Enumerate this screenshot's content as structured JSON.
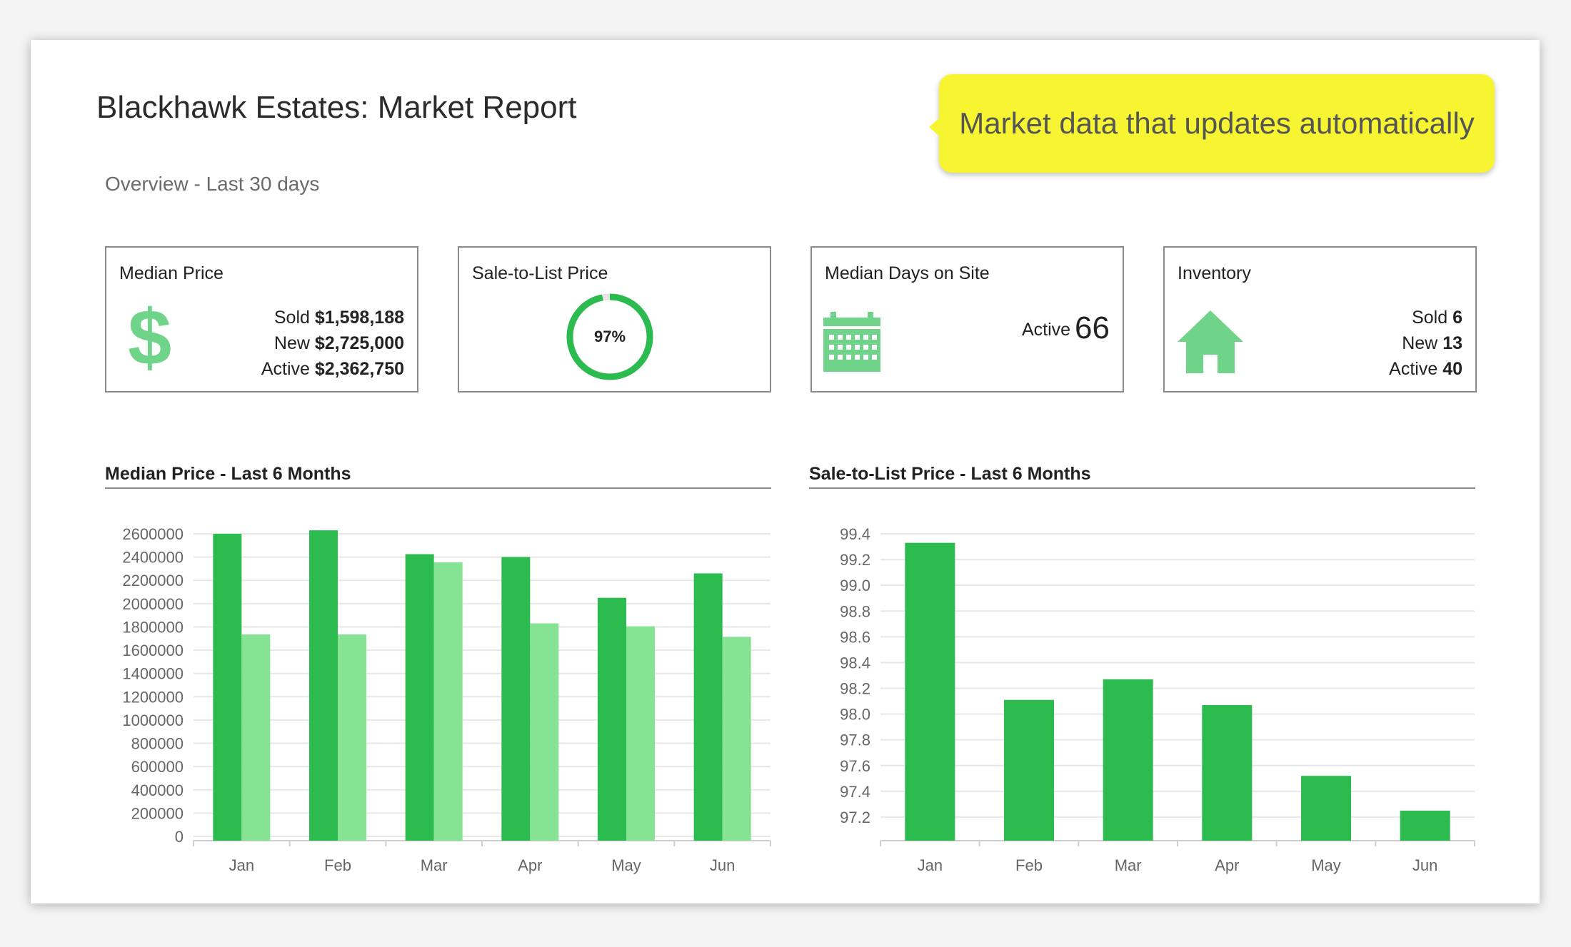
{
  "header": {
    "title": "Blackhawk Estates: Market Report",
    "subtitle": "Overview - Last 30 days",
    "callout": "Market data that updates automatically"
  },
  "cards": {
    "median_price": {
      "title": "Median Price",
      "icon": "dollar-icon",
      "sold_label": "Sold",
      "sold_value": "$1,598,188",
      "new_label": "New",
      "new_value": "$2,725,000",
      "active_label": "Active",
      "active_value": "$2,362,750"
    },
    "sale_to_list": {
      "title": "Sale-to-List Price",
      "value": "97%",
      "fraction": 0.97
    },
    "median_days": {
      "title": "Median Days on Site",
      "icon": "calendar-icon",
      "active_label": "Active",
      "active_value": "66"
    },
    "inventory": {
      "title": "Inventory",
      "icon": "house-icon",
      "sold_label": "Sold",
      "sold_value": "6",
      "new_label": "New",
      "new_value": "13",
      "active_label": "Active",
      "active_value": "40"
    }
  },
  "colors": {
    "accent": "#2bbb4f",
    "accent_light": "#86e393",
    "icon_green": "#6fd48a",
    "callout_yellow": "#f7f532"
  },
  "chart_data": [
    {
      "type": "bar",
      "title": "Median Price - Last 6 Months",
      "categories": [
        "Jan",
        "Feb",
        "Mar",
        "Apr",
        "May",
        "Jun"
      ],
      "series": [
        {
          "values": [
            2600000,
            2630000,
            2425000,
            2400000,
            2050000,
            2260000
          ]
        },
        {
          "values": [
            1735000,
            1735000,
            2355000,
            1830000,
            1805000,
            1715000
          ]
        }
      ],
      "yticks": [
        0,
        200000,
        400000,
        600000,
        800000,
        1000000,
        1200000,
        1400000,
        1600000,
        1800000,
        2000000,
        2200000,
        2400000,
        2600000
      ],
      "ylim": [
        0,
        2600000
      ],
      "grid": true
    },
    {
      "type": "bar",
      "title": "Sale-to-List Price - Last 6 Months",
      "categories": [
        "Jan",
        "Feb",
        "Mar",
        "Apr",
        "May",
        "Jun"
      ],
      "series": [
        {
          "values": [
            99.33,
            98.11,
            98.27,
            98.07,
            97.52,
            97.25
          ]
        }
      ],
      "yticks": [
        97.2,
        97.4,
        97.6,
        97.8,
        98.0,
        98.2,
        98.4,
        98.6,
        98.8,
        99.0,
        99.2,
        99.4
      ],
      "ylim": [
        97.05,
        99.4
      ],
      "grid": true
    }
  ]
}
